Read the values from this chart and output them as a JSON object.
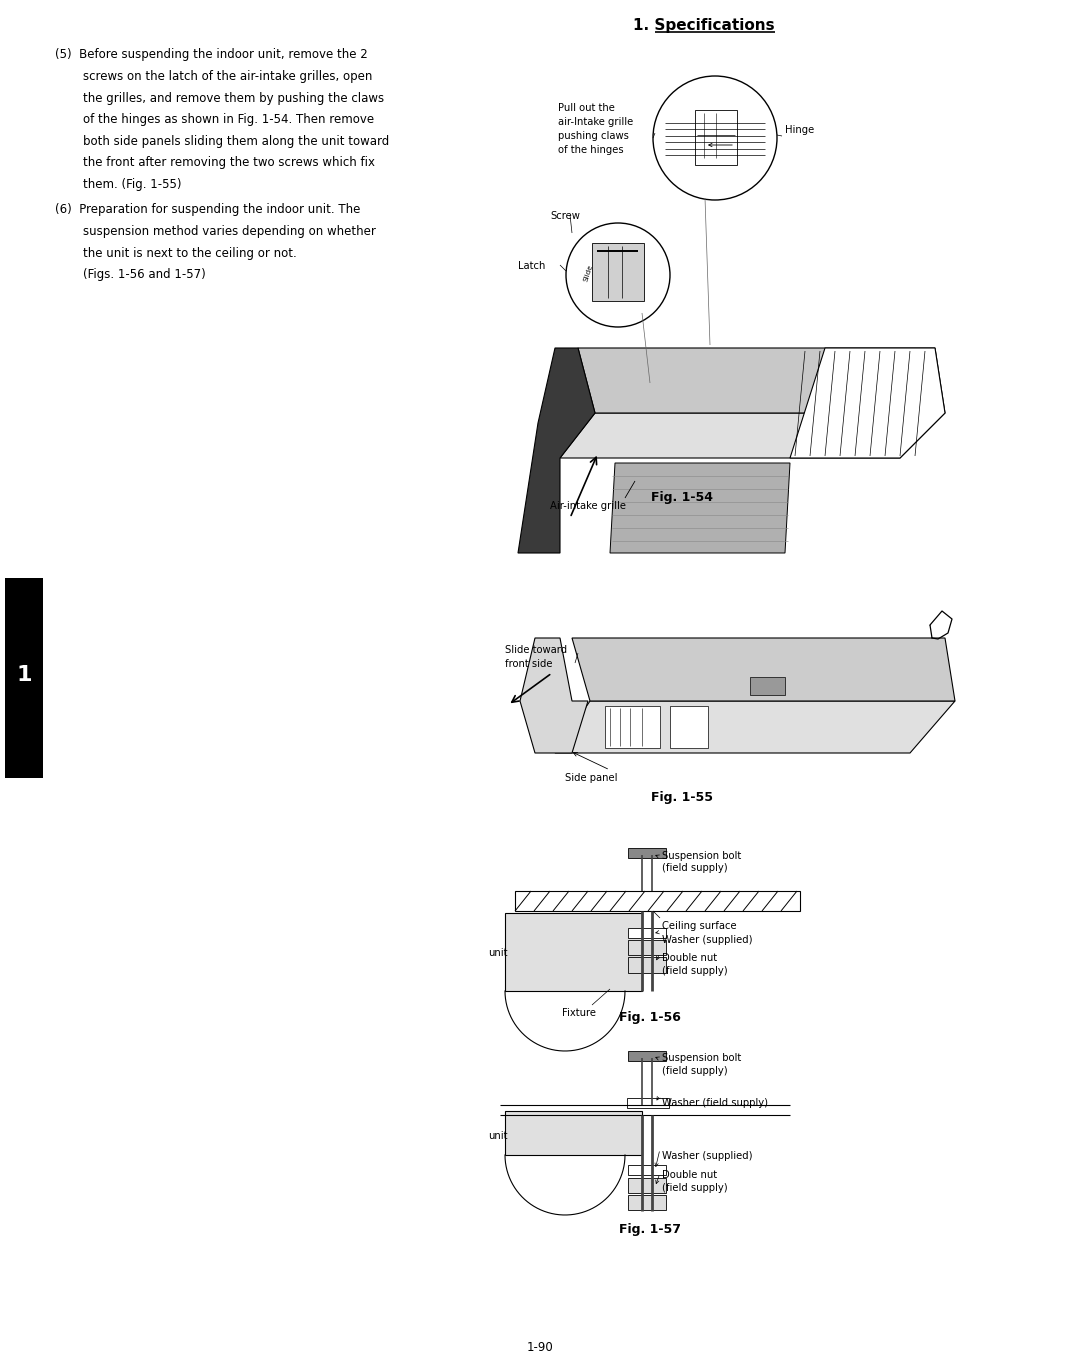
{
  "bg_color": "#ffffff",
  "page_width": 10.8,
  "page_height": 13.63,
  "header_text": "1. Specifications",
  "section5_title": "(5)  Before suspending the indoor unit, remove the 2",
  "section5_lines": [
    "screws on the latch of the air-intake grilles, open",
    "the grilles, and remove them by pushing the claws",
    "of the hinges as shown in Fig. 1-54. Then remove",
    "both side panels sliding them along the unit toward",
    "the front after removing the two screws which fix",
    "them. (Fig. 1-55)"
  ],
  "section6_title": "(6)  Preparation for suspending the indoor unit. The",
  "section6_lines": [
    "suspension method varies depending on whether",
    "the unit is next to the ceiling or not.",
    "(Figs. 1-56 and 1-57)"
  ],
  "fig54_caption": "Fig. 1-54",
  "fig55_caption": "Fig. 1-55",
  "fig56_caption": "Fig. 1-56",
  "fig57_caption": "Fig. 1-57",
  "page_number": "1-90",
  "sidebar_text": "1",
  "font_size_body": 8.5,
  "font_size_caption": 9,
  "font_size_header": 11,
  "font_size_label": 7.2,
  "text_color": "#000000"
}
